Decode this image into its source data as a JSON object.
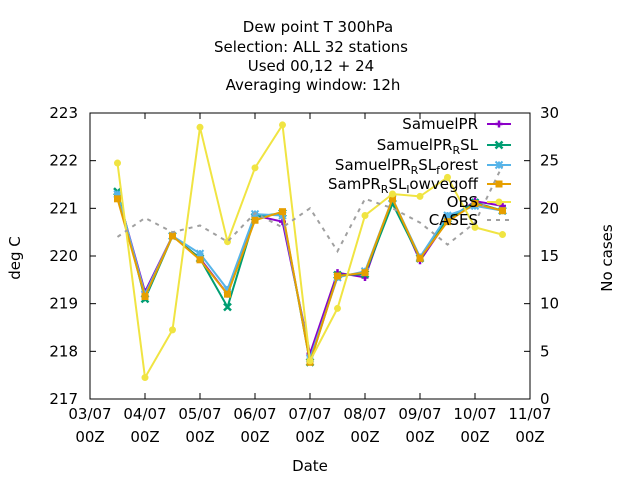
{
  "chart_data": {
    "type": "line",
    "title_lines": [
      "Dew point T 300hPa",
      "Selection: ALL      32 stations",
      "Used  00,12  + 24",
      "Averaging window: 12h"
    ],
    "xlabel": "Date",
    "ylabel": "deg C",
    "y2label": "No cases",
    "x_ticks": [
      {
        "line1": "03/07",
        "line2": "00Z",
        "x": 0
      },
      {
        "line1": "04/07",
        "line2": "00Z",
        "x": 1
      },
      {
        "line1": "05/07",
        "line2": "00Z",
        "x": 2
      },
      {
        "line1": "06/07",
        "line2": "00Z",
        "x": 3
      },
      {
        "line1": "07/07",
        "line2": "00Z",
        "x": 4
      },
      {
        "line1": "08/07",
        "line2": "00Z",
        "x": 5
      },
      {
        "line1": "09/07",
        "line2": "00Z",
        "x": 6
      },
      {
        "line1": "10/07",
        "line2": "00Z",
        "x": 7
      },
      {
        "line1": "11/07",
        "line2": "00Z",
        "x": 8
      }
    ],
    "xlim": [
      0,
      8
    ],
    "ylim": [
      217,
      223
    ],
    "y_ticks": [
      "217",
      "218",
      "219",
      "220",
      "221",
      "222",
      "223"
    ],
    "y2lim": [
      0,
      30
    ],
    "y2_ticks": [
      "0",
      "5",
      "10",
      "15",
      "20",
      "25",
      "30"
    ],
    "x": [
      0.5,
      1.0,
      1.5,
      2.0,
      2.5,
      3.0,
      3.5,
      4.0,
      4.5,
      5.0,
      5.5,
      6.0,
      6.5,
      7.0,
      7.5
    ],
    "series": [
      {
        "name": "SamuelPR",
        "color": "#8b00c8",
        "marker": "plus",
        "values": [
          221.3,
          219.25,
          220.42,
          219.95,
          219.2,
          220.85,
          220.72,
          217.95,
          219.65,
          219.55,
          221.2,
          219.9,
          220.75,
          221.15,
          221.05
        ]
      },
      {
        "name": "SamuelPR_R SL",
        "color": "#009e73",
        "marker": "x",
        "values": [
          221.35,
          219.1,
          220.42,
          219.95,
          218.93,
          220.82,
          220.9,
          217.77,
          219.6,
          219.62,
          221.1,
          219.95,
          220.78,
          221.12,
          220.95
        ]
      },
      {
        "name": "SamuelPR_R SL_f orest",
        "color": "#56b4e9",
        "marker": "star",
        "values": [
          221.3,
          219.2,
          220.42,
          220.05,
          219.3,
          220.88,
          220.85,
          217.85,
          219.55,
          219.68,
          221.2,
          219.98,
          220.85,
          221.05,
          220.95
        ]
      },
      {
        "name": "SamPR_R SL_l owvegoff",
        "color": "#e69f00",
        "marker": "square",
        "values": [
          221.2,
          219.15,
          220.42,
          219.92,
          219.2,
          220.75,
          220.93,
          217.77,
          219.58,
          219.65,
          221.2,
          219.95,
          220.72,
          221.1,
          220.95
        ]
      },
      {
        "name": "OBS",
        "color": "#f0e442",
        "marker": "circle",
        "values": [
          221.95,
          217.45,
          218.45,
          222.7,
          220.3,
          221.85,
          222.75,
          217.8,
          218.9,
          220.85,
          221.3,
          221.25,
          221.65,
          220.6,
          220.45
        ]
      },
      {
        "name": "CASES",
        "color": "#a0a0a0",
        "axis": "y2",
        "dash": true,
        "values": [
          17.0,
          19.0,
          17.5,
          18.2,
          16.5,
          19.5,
          18.0,
          20.0,
          15.5,
          21.0,
          20.0,
          18.5,
          16.2,
          18.5,
          24.5
        ]
      }
    ],
    "grid": false,
    "legend_position": "top-right"
  }
}
